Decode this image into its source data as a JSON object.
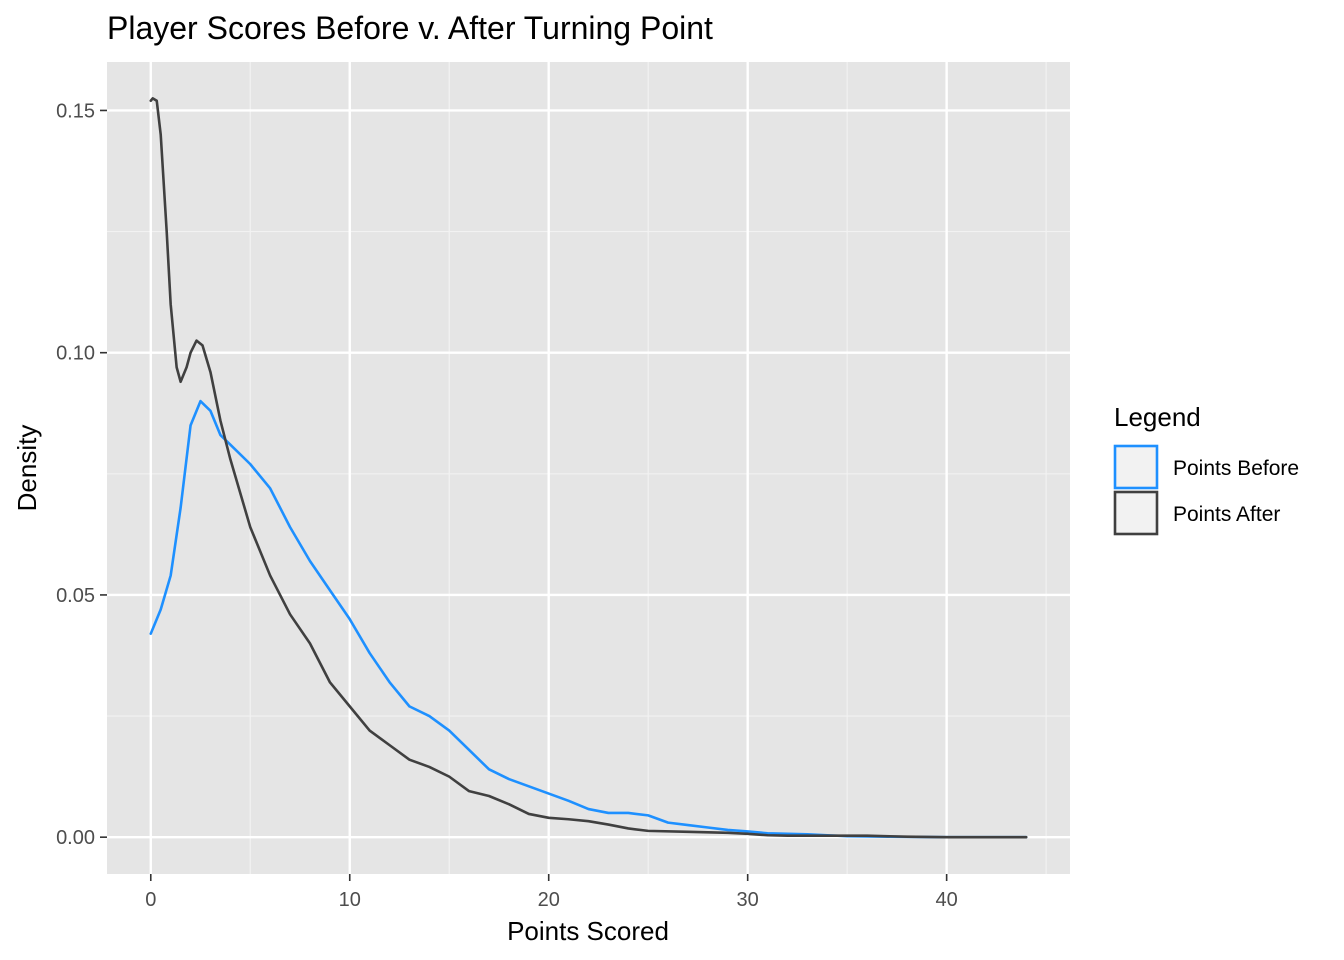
{
  "chart_data": {
    "type": "line",
    "title": "Player Scores Before v. After Turning Point",
    "xlabel": "Points Scored",
    "ylabel": "Density",
    "xlim": [
      -2.2,
      46.2
    ],
    "ylim": [
      -0.0076,
      0.16
    ],
    "x_ticks": [
      0,
      10,
      20,
      30,
      40
    ],
    "x_tick_labels": [
      "0",
      "10",
      "20",
      "30",
      "40"
    ],
    "y_ticks": [
      0,
      0.05,
      0.1,
      0.15
    ],
    "y_tick_labels": [
      "0.00",
      "0.05",
      "0.10",
      "0.15"
    ],
    "grid": true,
    "legend": {
      "title": "Legend",
      "position": "right",
      "items": [
        {
          "label": "Points Before",
          "color": "#1e90ff"
        },
        {
          "label": "Points After",
          "color": "#404040"
        }
      ]
    },
    "series": [
      {
        "name": "Points Before",
        "color": "#1e90ff",
        "points": [
          [
            0,
            0.042
          ],
          [
            0.5,
            0.047
          ],
          [
            1,
            0.054
          ],
          [
            1.5,
            0.068
          ],
          [
            2,
            0.085
          ],
          [
            2.5,
            0.09
          ],
          [
            3,
            0.088
          ],
          [
            3.5,
            0.083
          ],
          [
            4,
            0.081
          ],
          [
            5,
            0.077
          ],
          [
            6,
            0.072
          ],
          [
            7,
            0.064
          ],
          [
            8,
            0.057
          ],
          [
            9,
            0.051
          ],
          [
            10,
            0.045
          ],
          [
            11,
            0.038
          ],
          [
            12,
            0.032
          ],
          [
            13,
            0.027
          ],
          [
            14,
            0.025
          ],
          [
            15,
            0.022
          ],
          [
            16,
            0.018
          ],
          [
            17,
            0.014
          ],
          [
            18,
            0.012
          ],
          [
            19,
            0.0105
          ],
          [
            20,
            0.009
          ],
          [
            21,
            0.0075
          ],
          [
            22,
            0.0058
          ],
          [
            23,
            0.005
          ],
          [
            24,
            0.005
          ],
          [
            25,
            0.0045
          ],
          [
            26,
            0.003
          ],
          [
            27,
            0.0025
          ],
          [
            28,
            0.002
          ],
          [
            29,
            0.0015
          ],
          [
            30,
            0.0012
          ],
          [
            31,
            0.0008
          ],
          [
            32,
            0.0007
          ],
          [
            33,
            0.0006
          ],
          [
            34,
            0.0004
          ],
          [
            35,
            0.0002
          ],
          [
            37,
            0.0001
          ],
          [
            40,
            0.0
          ],
          [
            42,
            0.0
          ],
          [
            44,
            0.0
          ]
        ]
      },
      {
        "name": "Points After",
        "color": "#404040",
        "points": [
          [
            0,
            0.152
          ],
          [
            0.1,
            0.1525
          ],
          [
            0.3,
            0.152
          ],
          [
            0.5,
            0.145
          ],
          [
            0.8,
            0.125
          ],
          [
            1,
            0.11
          ],
          [
            1.3,
            0.097
          ],
          [
            1.5,
            0.094
          ],
          [
            1.8,
            0.097
          ],
          [
            2,
            0.1
          ],
          [
            2.3,
            0.1025
          ],
          [
            2.6,
            0.1015
          ],
          [
            3,
            0.096
          ],
          [
            3.5,
            0.086
          ],
          [
            4,
            0.078
          ],
          [
            5,
            0.064
          ],
          [
            6,
            0.054
          ],
          [
            7,
            0.046
          ],
          [
            8,
            0.04
          ],
          [
            9,
            0.032
          ],
          [
            10,
            0.027
          ],
          [
            11,
            0.022
          ],
          [
            12,
            0.019
          ],
          [
            13,
            0.016
          ],
          [
            14,
            0.0145
          ],
          [
            15,
            0.0125
          ],
          [
            16,
            0.0095
          ],
          [
            17,
            0.0085
          ],
          [
            18,
            0.0068
          ],
          [
            19,
            0.0048
          ],
          [
            20,
            0.004
          ],
          [
            21,
            0.0037
          ],
          [
            22,
            0.0033
          ],
          [
            23,
            0.0026
          ],
          [
            24,
            0.0018
          ],
          [
            25,
            0.0013
          ],
          [
            27,
            0.0011
          ],
          [
            29,
            0.0009
          ],
          [
            30,
            0.0007
          ],
          [
            31,
            0.0004
          ],
          [
            32,
            0.0003
          ],
          [
            34,
            0.0003
          ],
          [
            36,
            0.0003
          ],
          [
            38,
            0.0001
          ],
          [
            40,
            0.0
          ],
          [
            42,
            0.0
          ],
          [
            44,
            0.0
          ]
        ]
      }
    ]
  }
}
